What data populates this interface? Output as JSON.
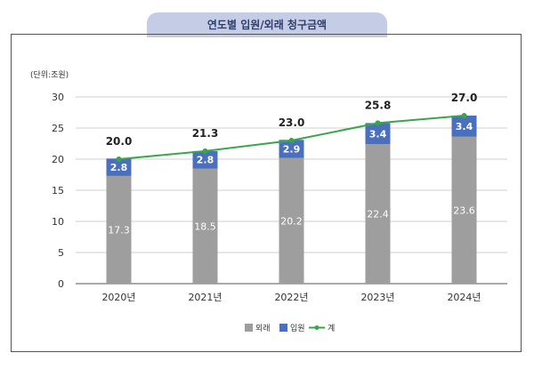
{
  "header": {
    "title": "연도별 입원/외래 청구금액"
  },
  "chart_data": {
    "type": "bar",
    "stacked": true,
    "unit_label": "(단위:조원)",
    "categories": [
      "2020년",
      "2021년",
      "2022년",
      "2023년",
      "2024년"
    ],
    "series": [
      {
        "name": "외래",
        "kind": "bar",
        "color": "#9e9e9e",
        "values": [
          17.3,
          18.5,
          20.2,
          22.4,
          23.6
        ]
      },
      {
        "name": "입원",
        "kind": "bar",
        "color": "#4a6fbf",
        "values": [
          2.8,
          2.8,
          2.9,
          3.4,
          3.4
        ]
      },
      {
        "name": "계",
        "kind": "line",
        "color": "#3aa64a",
        "values": [
          20.0,
          21.3,
          23.0,
          25.8,
          27.0
        ]
      }
    ],
    "total_labels": [
      "20.0",
      "21.3",
      "23.0",
      "25.8",
      "27.0"
    ],
    "outpatient_labels": [
      "17.3",
      "18.5",
      "20.2",
      "22.4",
      "23.6"
    ],
    "inpatient_labels": [
      "2.8",
      "2.8",
      "2.9",
      "3.4",
      "3.4"
    ],
    "yticks": [
      "0",
      "5",
      "10",
      "15",
      "20",
      "25",
      "30"
    ],
    "ylim": [
      0,
      30
    ],
    "grid": true,
    "legend_position": "bottom"
  }
}
